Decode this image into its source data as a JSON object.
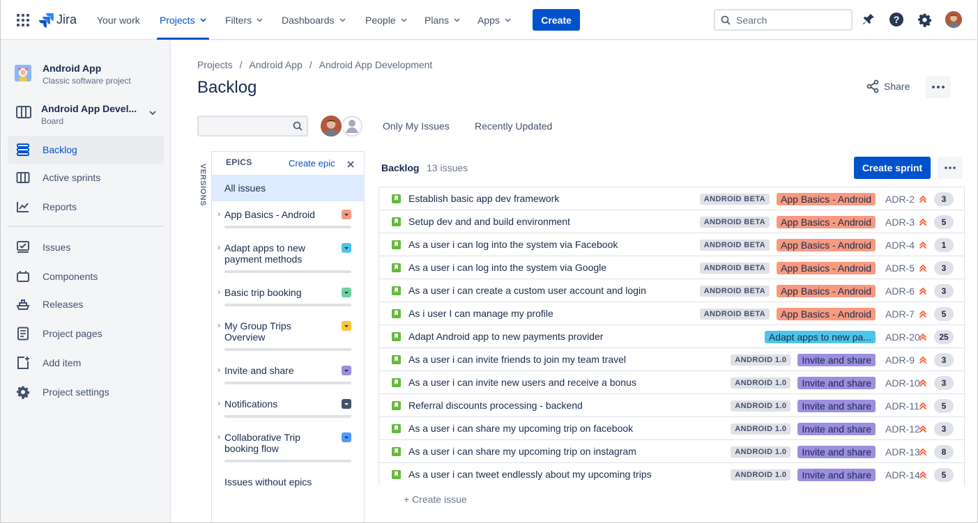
{
  "topnav": {
    "product": "Jira",
    "items": [
      {
        "label": "Your work",
        "has_menu": false,
        "active": false
      },
      {
        "label": "Projects",
        "has_menu": true,
        "active": true
      },
      {
        "label": "Filters",
        "has_menu": true,
        "active": false
      },
      {
        "label": "Dashboards",
        "has_menu": true,
        "active": false
      },
      {
        "label": "People",
        "has_menu": true,
        "active": false
      },
      {
        "label": "Plans",
        "has_menu": true,
        "active": false
      },
      {
        "label": "Apps",
        "has_menu": true,
        "active": false
      }
    ],
    "create_label": "Create",
    "search_placeholder": "Search",
    "icons": [
      "app-switcher-icon",
      "notifications-icon",
      "help-icon",
      "settings-icon",
      "profile-avatar"
    ]
  },
  "sidebar": {
    "project_name": "Android App",
    "project_type": "Classic software project",
    "board_name": "Android App Devel...",
    "board_type": "Board",
    "items": [
      {
        "label": "Backlog",
        "icon": "backlog-icon",
        "active": true
      },
      {
        "label": "Active sprints",
        "icon": "board-icon",
        "active": false
      },
      {
        "label": "Reports",
        "icon": "reports-icon",
        "active": false
      },
      {
        "label": "Issues",
        "icon": "issues-icon",
        "active": false
      },
      {
        "label": "Components",
        "icon": "components-icon",
        "active": false
      },
      {
        "label": "Releases",
        "icon": "releases-icon",
        "active": false
      },
      {
        "label": "Project pages",
        "icon": "pages-icon",
        "active": false
      },
      {
        "label": "Add item",
        "icon": "add-item-icon",
        "active": false
      },
      {
        "label": "Project settings",
        "icon": "settings-icon",
        "active": false
      }
    ]
  },
  "breadcrumbs": [
    "Projects",
    "Android App",
    "Android App Development"
  ],
  "page_title": "Backlog",
  "share_label": "Share",
  "filters": {
    "only_my_issues": "Only My Issues",
    "recently_updated": "Recently Updated"
  },
  "versions_label": "VERSIONS",
  "epics_panel": {
    "title": "EPICS",
    "create_epic": "Create epic",
    "all_issues": "All issues",
    "epics": [
      {
        "name": "App Basics - Android",
        "color": "#f79a80"
      },
      {
        "name": "Adapt apps to new payment methods",
        "color": "#4ec5e8"
      },
      {
        "name": "Basic trip booking",
        "color": "#6ed49c"
      },
      {
        "name": "My Group Trips Overview",
        "color": "#ffc53d"
      },
      {
        "name": "Invite and share",
        "color": "#9d8ee0"
      },
      {
        "name": "Notifications",
        "color": "#42526e"
      },
      {
        "name": "Collaborative Trip booking flow",
        "color": "#4c9aff"
      }
    ],
    "issues_without_epics": "Issues without epics"
  },
  "backlog": {
    "title": "Backlog",
    "count_text": "13 issues",
    "create_sprint": "Create sprint",
    "create_issue": "+ Create issue",
    "issues": [
      {
        "summary": "Establish basic app dev framework",
        "version": "ANDROID BETA",
        "epic": "App Basics - Android",
        "epic_color": "#f79a80",
        "key": "ADR-2",
        "estimate": "3"
      },
      {
        "summary": "Setup dev and and build environment",
        "version": "ANDROID BETA",
        "epic": "App Basics - Android",
        "epic_color": "#f79a80",
        "key": "ADR-3",
        "estimate": "5"
      },
      {
        "summary": "As a user i can log into the system via Facebook",
        "version": "ANDROID BETA",
        "epic": "App Basics - Android",
        "epic_color": "#f79a80",
        "key": "ADR-4",
        "estimate": "1"
      },
      {
        "summary": "As a user i can log into the system via Google",
        "version": "ANDROID BETA",
        "epic": "App Basics - Android",
        "epic_color": "#f79a80",
        "key": "ADR-5",
        "estimate": "3"
      },
      {
        "summary": "As a user i can create a custom user account and login",
        "version": "ANDROID BETA",
        "epic": "App Basics - Android",
        "epic_color": "#f79a80",
        "key": "ADR-6",
        "estimate": "3"
      },
      {
        "summary": "As i user I can manage my profile",
        "version": "ANDROID BETA",
        "epic": "App Basics - Android",
        "epic_color": "#f79a80",
        "key": "ADR-7",
        "estimate": "5"
      },
      {
        "summary": "Adapt Android app to new payments provider",
        "version": "",
        "epic": "Adapt apps to new pa...",
        "epic_color": "#4ec5e8",
        "key": "ADR-20",
        "estimate": "25"
      },
      {
        "summary": "As a user i can invite friends to join my team travel",
        "version": "ANDROID 1.0",
        "epic": "Invite and share",
        "epic_color": "#9d8ee0",
        "key": "ADR-9",
        "estimate": "3"
      },
      {
        "summary": "As a user i can invite new users and receive a bonus",
        "version": "ANDROID 1.0",
        "epic": "Invite and share",
        "epic_color": "#9d8ee0",
        "key": "ADR-10",
        "estimate": "3"
      },
      {
        "summary": "Referral discounts processing - backend",
        "version": "ANDROID 1.0",
        "epic": "Invite and share",
        "epic_color": "#9d8ee0",
        "key": "ADR-11",
        "estimate": "5"
      },
      {
        "summary": "As a user i can share my upcoming trip on facebook",
        "version": "ANDROID 1.0",
        "epic": "Invite and share",
        "epic_color": "#9d8ee0",
        "key": "ADR-12",
        "estimate": "3"
      },
      {
        "summary": "As a user i can share my upcoming trip on instagram",
        "version": "ANDROID 1.0",
        "epic": "Invite and share",
        "epic_color": "#9d8ee0",
        "key": "ADR-13",
        "estimate": "8"
      },
      {
        "summary": "As a user i can tweet endlessly about my upcoming trips",
        "version": "ANDROID 1.0",
        "epic": "Invite and share",
        "epic_color": "#9d8ee0",
        "key": "ADR-14",
        "estimate": "5"
      }
    ]
  },
  "colors": {
    "brand": "#0052cc",
    "story": "#63ba3c",
    "priority_highest": "#ff5630"
  }
}
